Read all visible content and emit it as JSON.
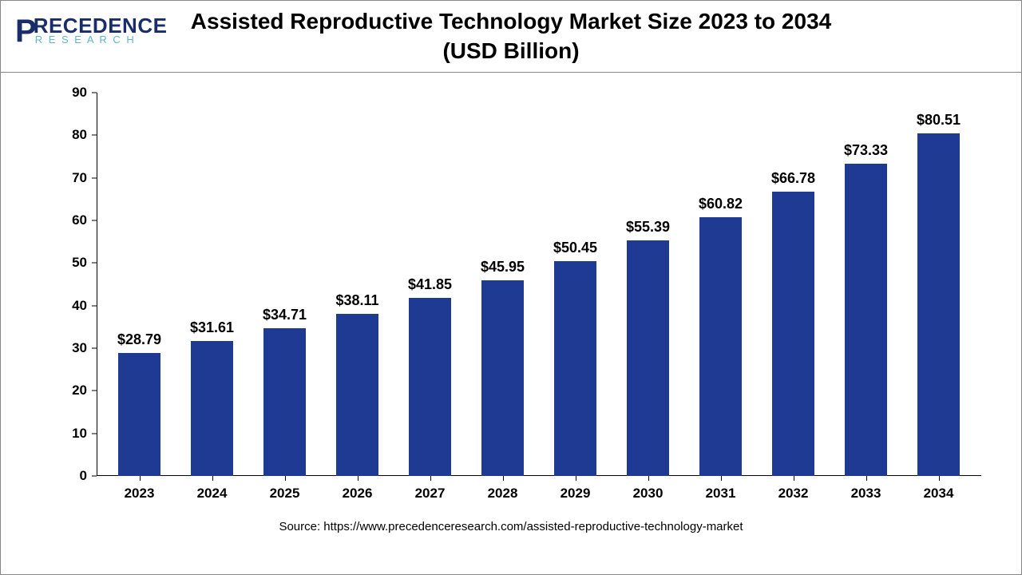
{
  "logo": {
    "main": "RECEDENCE",
    "sub": "R E S E A R C H"
  },
  "title": "Assisted Reproductive Technology Market Size 2023 to 2034 (USD Billion)",
  "chart": {
    "type": "bar",
    "bar_color": "#1f3a93",
    "background_color": "#ffffff",
    "axis_color": "#000000",
    "ylim": [
      0,
      90
    ],
    "ytick_step": 10,
    "title_fontsize": 28,
    "label_fontsize": 17,
    "value_fontsize": 18,
    "bar_width": 0.58,
    "categories": [
      "2023",
      "2024",
      "2025",
      "2026",
      "2027",
      "2028",
      "2029",
      "2030",
      "2031",
      "2032",
      "2033",
      "2034"
    ],
    "values": [
      28.79,
      31.61,
      34.71,
      38.11,
      41.85,
      45.95,
      50.45,
      55.39,
      60.82,
      66.78,
      73.33,
      80.51
    ],
    "value_labels": [
      "$28.79",
      "$31.61",
      "$34.71",
      "$38.11",
      "$41.85",
      "$45.95",
      "$50.45",
      "$55.39",
      "$60.82",
      "$66.78",
      "$73.33",
      "$80.51"
    ]
  },
  "source": "Source: https://www.precedenceresearch.com/assisted-reproductive-technology-market"
}
